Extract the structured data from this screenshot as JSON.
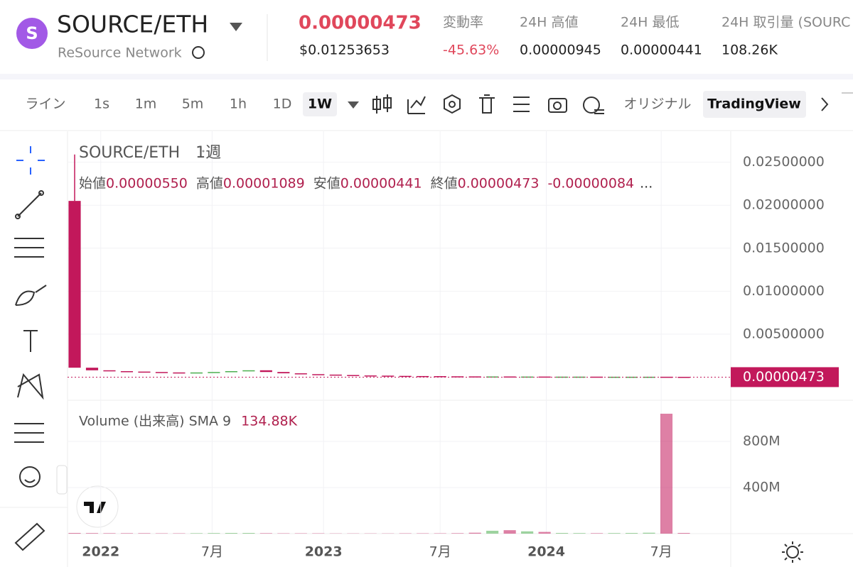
{
  "header": {
    "logo_letter": "S",
    "pair": "SOURCE/ETH",
    "name": "ReSource Network",
    "price": "0.00000473",
    "usd_price": "$0.01253653",
    "stats": [
      {
        "label": "変動率",
        "value": "-45.63%"
      },
      {
        "label": "24H 高値",
        "value": "0.00000945"
      },
      {
        "label": "24H 最低",
        "value": "0.00000441"
      },
      {
        "label": "24H 取引量 (SOURC",
        "value": "108.26K"
      }
    ]
  },
  "toolbar": {
    "intervals": [
      "ライン",
      "1s",
      "1m",
      "5m",
      "1h",
      "1D",
      "1W"
    ],
    "active": "1W",
    "views": [
      "オリジナル",
      "TradingView"
    ],
    "active_view": "TradingView"
  },
  "chart": {
    "type": "candlestick",
    "symbol": "SOURCE/ETH",
    "interval": "1週",
    "ohlc": [
      {
        "label": "始値",
        "value": "0.00000550"
      },
      {
        "label": "高値",
        "value": "0.00001089"
      },
      {
        "label": "安値",
        "value": "0.00000441"
      },
      {
        "label": "終値",
        "value": "0.00000473"
      }
    ],
    "change": "-0.00000084",
    "more": "...",
    "first_open": 0.0205,
    "first_high": 0.0259,
    "closes": [
      0.0011,
      0.0008,
      0.0007,
      0.00065,
      0.0006,
      0.00055,
      0.0005,
      0.00055,
      0.0006,
      0.0007,
      0.0008,
      0.0006,
      0.00045,
      0.00035,
      0.0003,
      0.00025,
      0.0002,
      0.00018,
      0.00015,
      0.00013,
      0.00012,
      0.0001,
      9e-05,
      8e-05,
      8e-05,
      7e-05,
      7e-05,
      6e-05,
      6e-05,
      6e-05,
      5e-05,
      5e-05,
      5e-05,
      5e-05,
      4e-05,
      4.73e-06
    ],
    "volumes": [
      6000000,
      5000000,
      4000000,
      4000000,
      4000000,
      3000000,
      3000000,
      4000000,
      5000000,
      6000000,
      6000000,
      4000000,
      3000000,
      3000000,
      3000000,
      2000000,
      2000000,
      2000000,
      2000000,
      3000000,
      3000000,
      3000000,
      4000000,
      8000000,
      25000000,
      30000000,
      20000000,
      15000000,
      6000000,
      5000000,
      4000000,
      5000000,
      6000000,
      8000000,
      1040000000,
      6000000
    ],
    "xlim": [
      0,
      35
    ],
    "xticks": [
      {
        "value": 1.5,
        "label": "2022"
      },
      {
        "value": 7.9,
        "label": "7月"
      },
      {
        "value": 14.3,
        "label": "2023"
      },
      {
        "value": 21,
        "label": "7月"
      },
      {
        "value": 27.1,
        "label": "2024"
      },
      {
        "value": 33.7,
        "label": "7月"
      }
    ],
    "ylim": [
      -0.0026,
      0.0286
    ],
    "yticks": [
      {
        "value": 0.025,
        "label": "0.02500000"
      },
      {
        "value": 0.02,
        "label": "0.02000000"
      },
      {
        "value": 0.015,
        "label": "0.01500000"
      },
      {
        "value": 0.01,
        "label": "0.01000000"
      },
      {
        "value": 0.005,
        "label": "0.00500000"
      }
    ],
    "last_price": {
      "value": 4.73e-06,
      "label": "0.00000473"
    },
    "volume_label": "Volume (出来高) SMA 9",
    "volume_sma": "134.88K",
    "vlim": [
      0,
      1163000000
    ],
    "vticks": [
      {
        "value": 800000000,
        "label": "800M"
      },
      {
        "value": 400000000,
        "label": "400M"
      }
    ],
    "up_color": "#4caf50",
    "down_color": "#c2185b"
  }
}
